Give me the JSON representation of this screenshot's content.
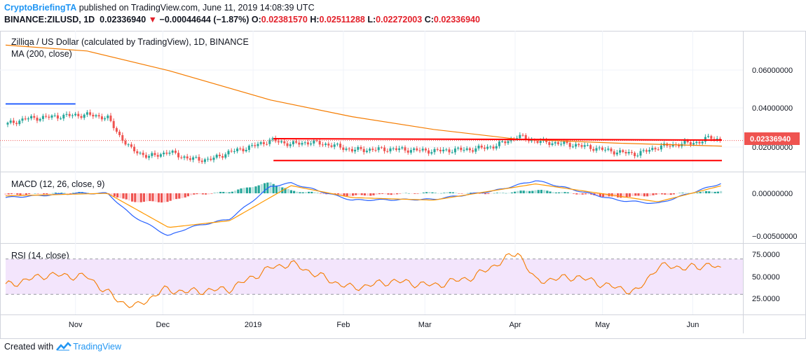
{
  "header": {
    "author": "CryptoBriefingTA",
    "published_text": " published on TradingView.com, June 11, 2019 14:08:39 UTC",
    "symbol": "BINANCE:ZILUSD, 1D",
    "last": "0.02336940",
    "change": "−0.00044644 (−1.87%)",
    "o_label": "O:",
    "o": "0.02381570",
    "h_label": "H:",
    "h": "0.02511288",
    "l_label": "L:",
    "l": "0.02272003",
    "c_label": "C:",
    "c": "0.02336940"
  },
  "footer": {
    "created_with": "Created with",
    "brand": "TradingView"
  },
  "colors": {
    "up": "#26a69a",
    "down": "#ef5350",
    "ma": "#f57c00",
    "blue": "#2962ff",
    "red_line": "#ff0000",
    "rsi_band": "#f3e5fc",
    "macd_line": "#2962ff",
    "signal_line": "#ff9800"
  },
  "chart_data": [
    {
      "type": "candlestick",
      "title": "Zilliqa / US Dollar (calculated by TradingView), 1D, BINANCE",
      "indicator": "MA (200, close)",
      "x_ticks": [
        "Nov",
        "Dec",
        "2019",
        "Feb",
        "Mar",
        "Apr",
        "May",
        "Jun"
      ],
      "y_ticks": [
        "0.06000000",
        "0.04000000",
        "0.02000000"
      ],
      "last_price_label": "0.02336940",
      "ylim": [
        0.0,
        0.078
      ],
      "close_series": [
        {
          "date": "2018-10-08",
          "close": 0.0315
        },
        {
          "date": "2018-10-15",
          "close": 0.0345
        },
        {
          "date": "2018-10-22",
          "close": 0.0352
        },
        {
          "date": "2018-10-29",
          "close": 0.036
        },
        {
          "date": "2018-11-05",
          "close": 0.0365
        },
        {
          "date": "2018-11-12",
          "close": 0.035
        },
        {
          "date": "2018-11-16",
          "close": 0.026
        },
        {
          "date": "2018-11-20",
          "close": 0.019
        },
        {
          "date": "2018-11-26",
          "close": 0.015
        },
        {
          "date": "2018-12-03",
          "close": 0.0175
        },
        {
          "date": "2018-12-10",
          "close": 0.014
        },
        {
          "date": "2018-12-17",
          "close": 0.0135
        },
        {
          "date": "2018-12-24",
          "close": 0.0175
        },
        {
          "date": "2018-12-31",
          "close": 0.02
        },
        {
          "date": "2019-01-07",
          "close": 0.0235
        },
        {
          "date": "2019-01-14",
          "close": 0.0215
        },
        {
          "date": "2019-01-21",
          "close": 0.0225
        },
        {
          "date": "2019-01-28",
          "close": 0.021
        },
        {
          "date": "2019-02-04",
          "close": 0.0185
        },
        {
          "date": "2019-02-18",
          "close": 0.019
        },
        {
          "date": "2019-03-04",
          "close": 0.018
        },
        {
          "date": "2019-03-18",
          "close": 0.019
        },
        {
          "date": "2019-03-25",
          "close": 0.0205
        },
        {
          "date": "2019-04-02",
          "close": 0.0255
        },
        {
          "date": "2019-04-08",
          "close": 0.023
        },
        {
          "date": "2019-04-22",
          "close": 0.021
        },
        {
          "date": "2019-05-06",
          "close": 0.0175
        },
        {
          "date": "2019-05-13",
          "close": 0.0165
        },
        {
          "date": "2019-05-20",
          "close": 0.02
        },
        {
          "date": "2019-05-27",
          "close": 0.0215
        },
        {
          "date": "2019-06-03",
          "close": 0.0225
        },
        {
          "date": "2019-06-07",
          "close": 0.025
        },
        {
          "date": "2019-06-11",
          "close": 0.0234
        }
      ],
      "ma200": [
        {
          "date": "2018-10-08",
          "value": 0.072
        },
        {
          "date": "2018-11-05",
          "value": 0.069
        },
        {
          "date": "2018-12-03",
          "value": 0.059
        },
        {
          "date": "2019-01-07",
          "value": 0.044
        },
        {
          "date": "2019-02-04",
          "value": 0.0355
        },
        {
          "date": "2019-03-04",
          "value": 0.029
        },
        {
          "date": "2019-04-02",
          "value": 0.024
        },
        {
          "date": "2019-05-06",
          "value": 0.022
        },
        {
          "date": "2019-06-11",
          "value": 0.0205
        }
      ],
      "annotations": {
        "blue_resistance": {
          "from": "2018-10-08",
          "to": "2018-11-01",
          "value": 0.042
        },
        "channel_top": {
          "from": "2019-01-08",
          "to": "2019-06-11",
          "value": 0.025
        },
        "channel_bottom": {
          "from": "2019-01-08",
          "to": "2019-06-11",
          "value": 0.0135
        }
      }
    },
    {
      "type": "line",
      "title": "MACD (12, 26, close, 9)",
      "y_ticks": [
        "0.00000000",
        "−0.00500000"
      ],
      "ylim": [
        -0.0058,
        0.0017
      ],
      "macd": [
        {
          "date": "2018-10-08",
          "value": -0.0005
        },
        {
          "date": "2018-11-01",
          "value": 0.0
        },
        {
          "date": "2018-11-12",
          "value": 0.0
        },
        {
          "date": "2018-11-20",
          "value": -0.0025
        },
        {
          "date": "2018-12-03",
          "value": -0.005
        },
        {
          "date": "2018-12-10",
          "value": -0.004
        },
        {
          "date": "2018-12-24",
          "value": -0.003
        },
        {
          "date": "2019-01-07",
          "value": 0.0008
        },
        {
          "date": "2019-01-14",
          "value": 0.0012
        },
        {
          "date": "2019-02-04",
          "value": -0.0008
        },
        {
          "date": "2019-03-04",
          "value": -0.0007
        },
        {
          "date": "2019-03-25",
          "value": 0.0003
        },
        {
          "date": "2019-04-08",
          "value": 0.0015
        },
        {
          "date": "2019-05-06",
          "value": -0.0008
        },
        {
          "date": "2019-05-20",
          "value": -0.0012
        },
        {
          "date": "2019-06-11",
          "value": 0.0012
        }
      ],
      "signal": [
        {
          "date": "2018-10-08",
          "value": -0.0003
        },
        {
          "date": "2018-11-12",
          "value": 0.0
        },
        {
          "date": "2018-12-03",
          "value": -0.004
        },
        {
          "date": "2018-12-24",
          "value": -0.0032
        },
        {
          "date": "2019-01-14",
          "value": 0.0009
        },
        {
          "date": "2019-02-04",
          "value": -0.0005
        },
        {
          "date": "2019-03-04",
          "value": -0.0008
        },
        {
          "date": "2019-04-08",
          "value": 0.0011
        },
        {
          "date": "2019-05-06",
          "value": -0.0003
        },
        {
          "date": "2019-05-20",
          "value": -0.001
        },
        {
          "date": "2019-06-11",
          "value": 0.0009
        }
      ]
    },
    {
      "type": "line",
      "title": "RSI (14, close)",
      "y_ticks": [
        "75.0000",
        "50.0000",
        "25.0000"
      ],
      "band": [
        30,
        70
      ],
      "ylim": [
        10,
        90
      ],
      "rsi": [
        {
          "date": "2018-10-08",
          "value": 40
        },
        {
          "date": "2018-10-22",
          "value": 52
        },
        {
          "date": "2018-11-05",
          "value": 50
        },
        {
          "date": "2018-11-16",
          "value": 22
        },
        {
          "date": "2018-11-22",
          "value": 16
        },
        {
          "date": "2018-12-01",
          "value": 35
        },
        {
          "date": "2018-12-10",
          "value": 33
        },
        {
          "date": "2018-12-24",
          "value": 36
        },
        {
          "date": "2019-01-07",
          "value": 60
        },
        {
          "date": "2019-01-14",
          "value": 65
        },
        {
          "date": "2019-01-28",
          "value": 45
        },
        {
          "date": "2019-02-04",
          "value": 37
        },
        {
          "date": "2019-02-18",
          "value": 45
        },
        {
          "date": "2019-03-04",
          "value": 40
        },
        {
          "date": "2019-03-18",
          "value": 50
        },
        {
          "date": "2019-04-02",
          "value": 78
        },
        {
          "date": "2019-04-08",
          "value": 45
        },
        {
          "date": "2019-04-22",
          "value": 50
        },
        {
          "date": "2019-05-06",
          "value": 37
        },
        {
          "date": "2019-05-13",
          "value": 33
        },
        {
          "date": "2019-05-20",
          "value": 62
        },
        {
          "date": "2019-06-03",
          "value": 60
        },
        {
          "date": "2019-06-07",
          "value": 66
        },
        {
          "date": "2019-06-11",
          "value": 55
        }
      ]
    }
  ]
}
